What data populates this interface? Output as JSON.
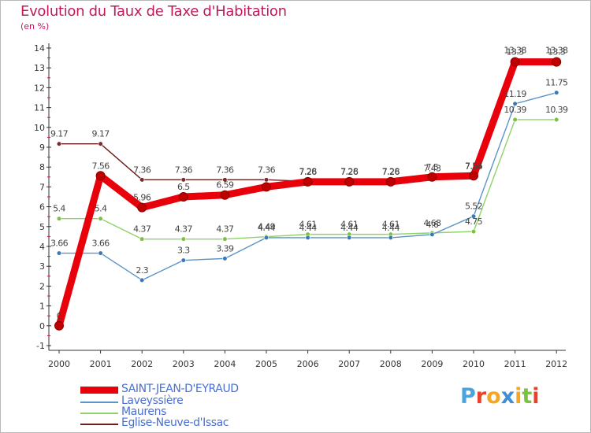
{
  "title": "Evolution du Taux de Taxe d'Habitation",
  "subtitle": "(en %)",
  "logo": {
    "text": "Proxiti",
    "colors": [
      "#4aa3df",
      "#e8412c",
      "#f5a623",
      "#3f8fd8",
      "#f5a623",
      "#7cc242",
      "#e8412c"
    ]
  },
  "chart_data": {
    "type": "line",
    "title": "Evolution du Taux de Taxe d'Habitation",
    "ylabel": "(en %)",
    "xlabel": "",
    "categories": [
      "2000",
      "2001",
      "2002",
      "2003",
      "2004",
      "2005",
      "2006",
      "2007",
      "2008",
      "2009",
      "2010",
      "2011",
      "2012"
    ],
    "ylim": [
      -1,
      14
    ],
    "yticks": [
      "-1",
      "0",
      "1",
      "2",
      "3",
      "4",
      "5",
      "6",
      "7",
      "8",
      "9",
      "10",
      "11",
      "12",
      "13",
      "14"
    ],
    "grid": false,
    "legend_position": "bottom-left",
    "series": [
      {
        "name": "Eglise-Neuve-d'Issac",
        "color": "#6b1e1e",
        "marker": "#7a2a2a",
        "width": "thin",
        "values": [
          9.17,
          9.17,
          7.36,
          7.36,
          7.36,
          7.36,
          7.28,
          7.28,
          7.28,
          7.43,
          7.54,
          13.38,
          13.38
        ],
        "labels": [
          "9.17",
          "9.17",
          "7.36",
          "7.36",
          "7.36",
          "7.36",
          "7.28",
          "7.28",
          "7.28",
          "7.43",
          "7.54",
          "13.38",
          "13.38"
        ]
      },
      {
        "name": "Maurens",
        "color": "#8fd16a",
        "marker": "#7cc242",
        "width": "thin",
        "values": [
          5.4,
          5.4,
          4.37,
          4.37,
          4.37,
          4.49,
          4.61,
          4.61,
          4.61,
          4.68,
          4.75,
          10.39,
          10.39
        ],
        "labels": [
          "5.4",
          "5.4",
          "4.37",
          "4.37",
          "4.37",
          "4.49",
          "4.61",
          "4.61",
          "4.61",
          "4.68",
          "4.75",
          "10.39",
          "10.39"
        ]
      },
      {
        "name": "Laveyssière",
        "color": "#5b94c8",
        "marker": "#3a78b8",
        "width": "thin",
        "values": [
          3.66,
          3.66,
          2.3,
          3.3,
          3.39,
          4.44,
          4.44,
          4.44,
          4.44,
          4.6,
          5.52,
          11.19,
          11.75
        ],
        "labels": [
          "3.66",
          "3.66",
          "2.3",
          "3.3",
          "3.39",
          "4.44",
          "4.44",
          "4.44",
          "4.44",
          "4.6",
          "5.52",
          "11.19",
          "11.75"
        ]
      },
      {
        "name": "SAINT-JEAN-D'EYRAUD",
        "color": "#e8000b",
        "marker": "#c00000",
        "width": "thick",
        "values": [
          0,
          7.56,
          5.96,
          6.5,
          6.59,
          7.0,
          7.26,
          7.26,
          7.26,
          7.5,
          7.56,
          13.3,
          13.3
        ],
        "labels": [
          "0",
          "7.56",
          "5.96",
          "6.5",
          "6.59",
          "",
          "7.26",
          "7.26",
          "7.26",
          "7.5",
          "7.56",
          "13.3",
          "13.3"
        ]
      }
    ]
  }
}
